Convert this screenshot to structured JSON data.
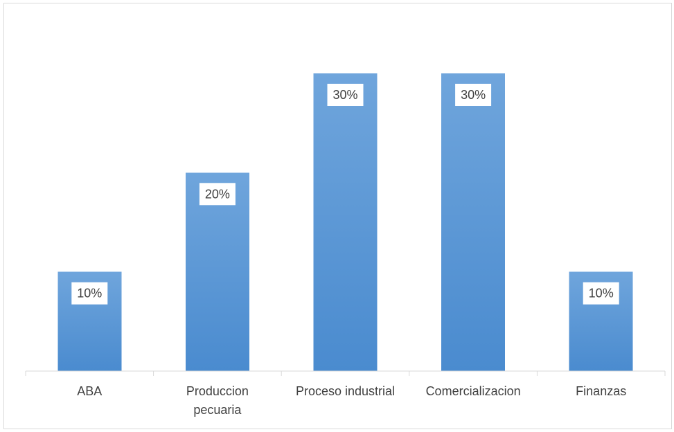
{
  "chart_data": {
    "type": "bar",
    "categories": [
      [
        "ABA"
      ],
      [
        "Produccion",
        "pecuaria"
      ],
      [
        "Proceso industrial"
      ],
      [
        "Comercializacion"
      ],
      [
        "Finanzas"
      ]
    ],
    "values": [
      10,
      20,
      30,
      30,
      10
    ],
    "data_labels": [
      "10%",
      "20%",
      "30%",
      "30%",
      "10%"
    ],
    "title": "",
    "xlabel": "",
    "ylabel": "",
    "ylim": [
      0,
      30
    ],
    "grid": false,
    "legend": "none",
    "colors": {
      "bar_top": "#6fa5dc",
      "bar_bottom": "#4a8bcf"
    }
  }
}
